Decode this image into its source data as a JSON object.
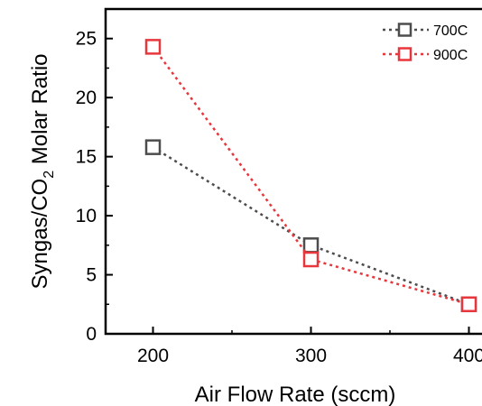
{
  "chart_data": {
    "type": "line",
    "x": [
      200,
      300,
      400
    ],
    "xlim": [
      170,
      410
    ],
    "ylim": [
      0,
      27.5
    ],
    "xticks": [
      200,
      300,
      400
    ],
    "yticks": [
      0,
      5,
      10,
      15,
      20,
      25
    ],
    "xlabel": "Air Flow Rate (sccm)",
    "ylabel_parts": [
      "Syngas/CO",
      "2",
      " Molar Ratio"
    ],
    "grid": false,
    "legend_position": "top-right",
    "series": [
      {
        "name": "700C",
        "values": [
          15.8,
          7.5,
          2.5
        ],
        "color": "#4d4d4d"
      },
      {
        "name": "900C",
        "values": [
          24.3,
          6.3,
          2.5
        ],
        "color": "#e8373c"
      }
    ]
  }
}
